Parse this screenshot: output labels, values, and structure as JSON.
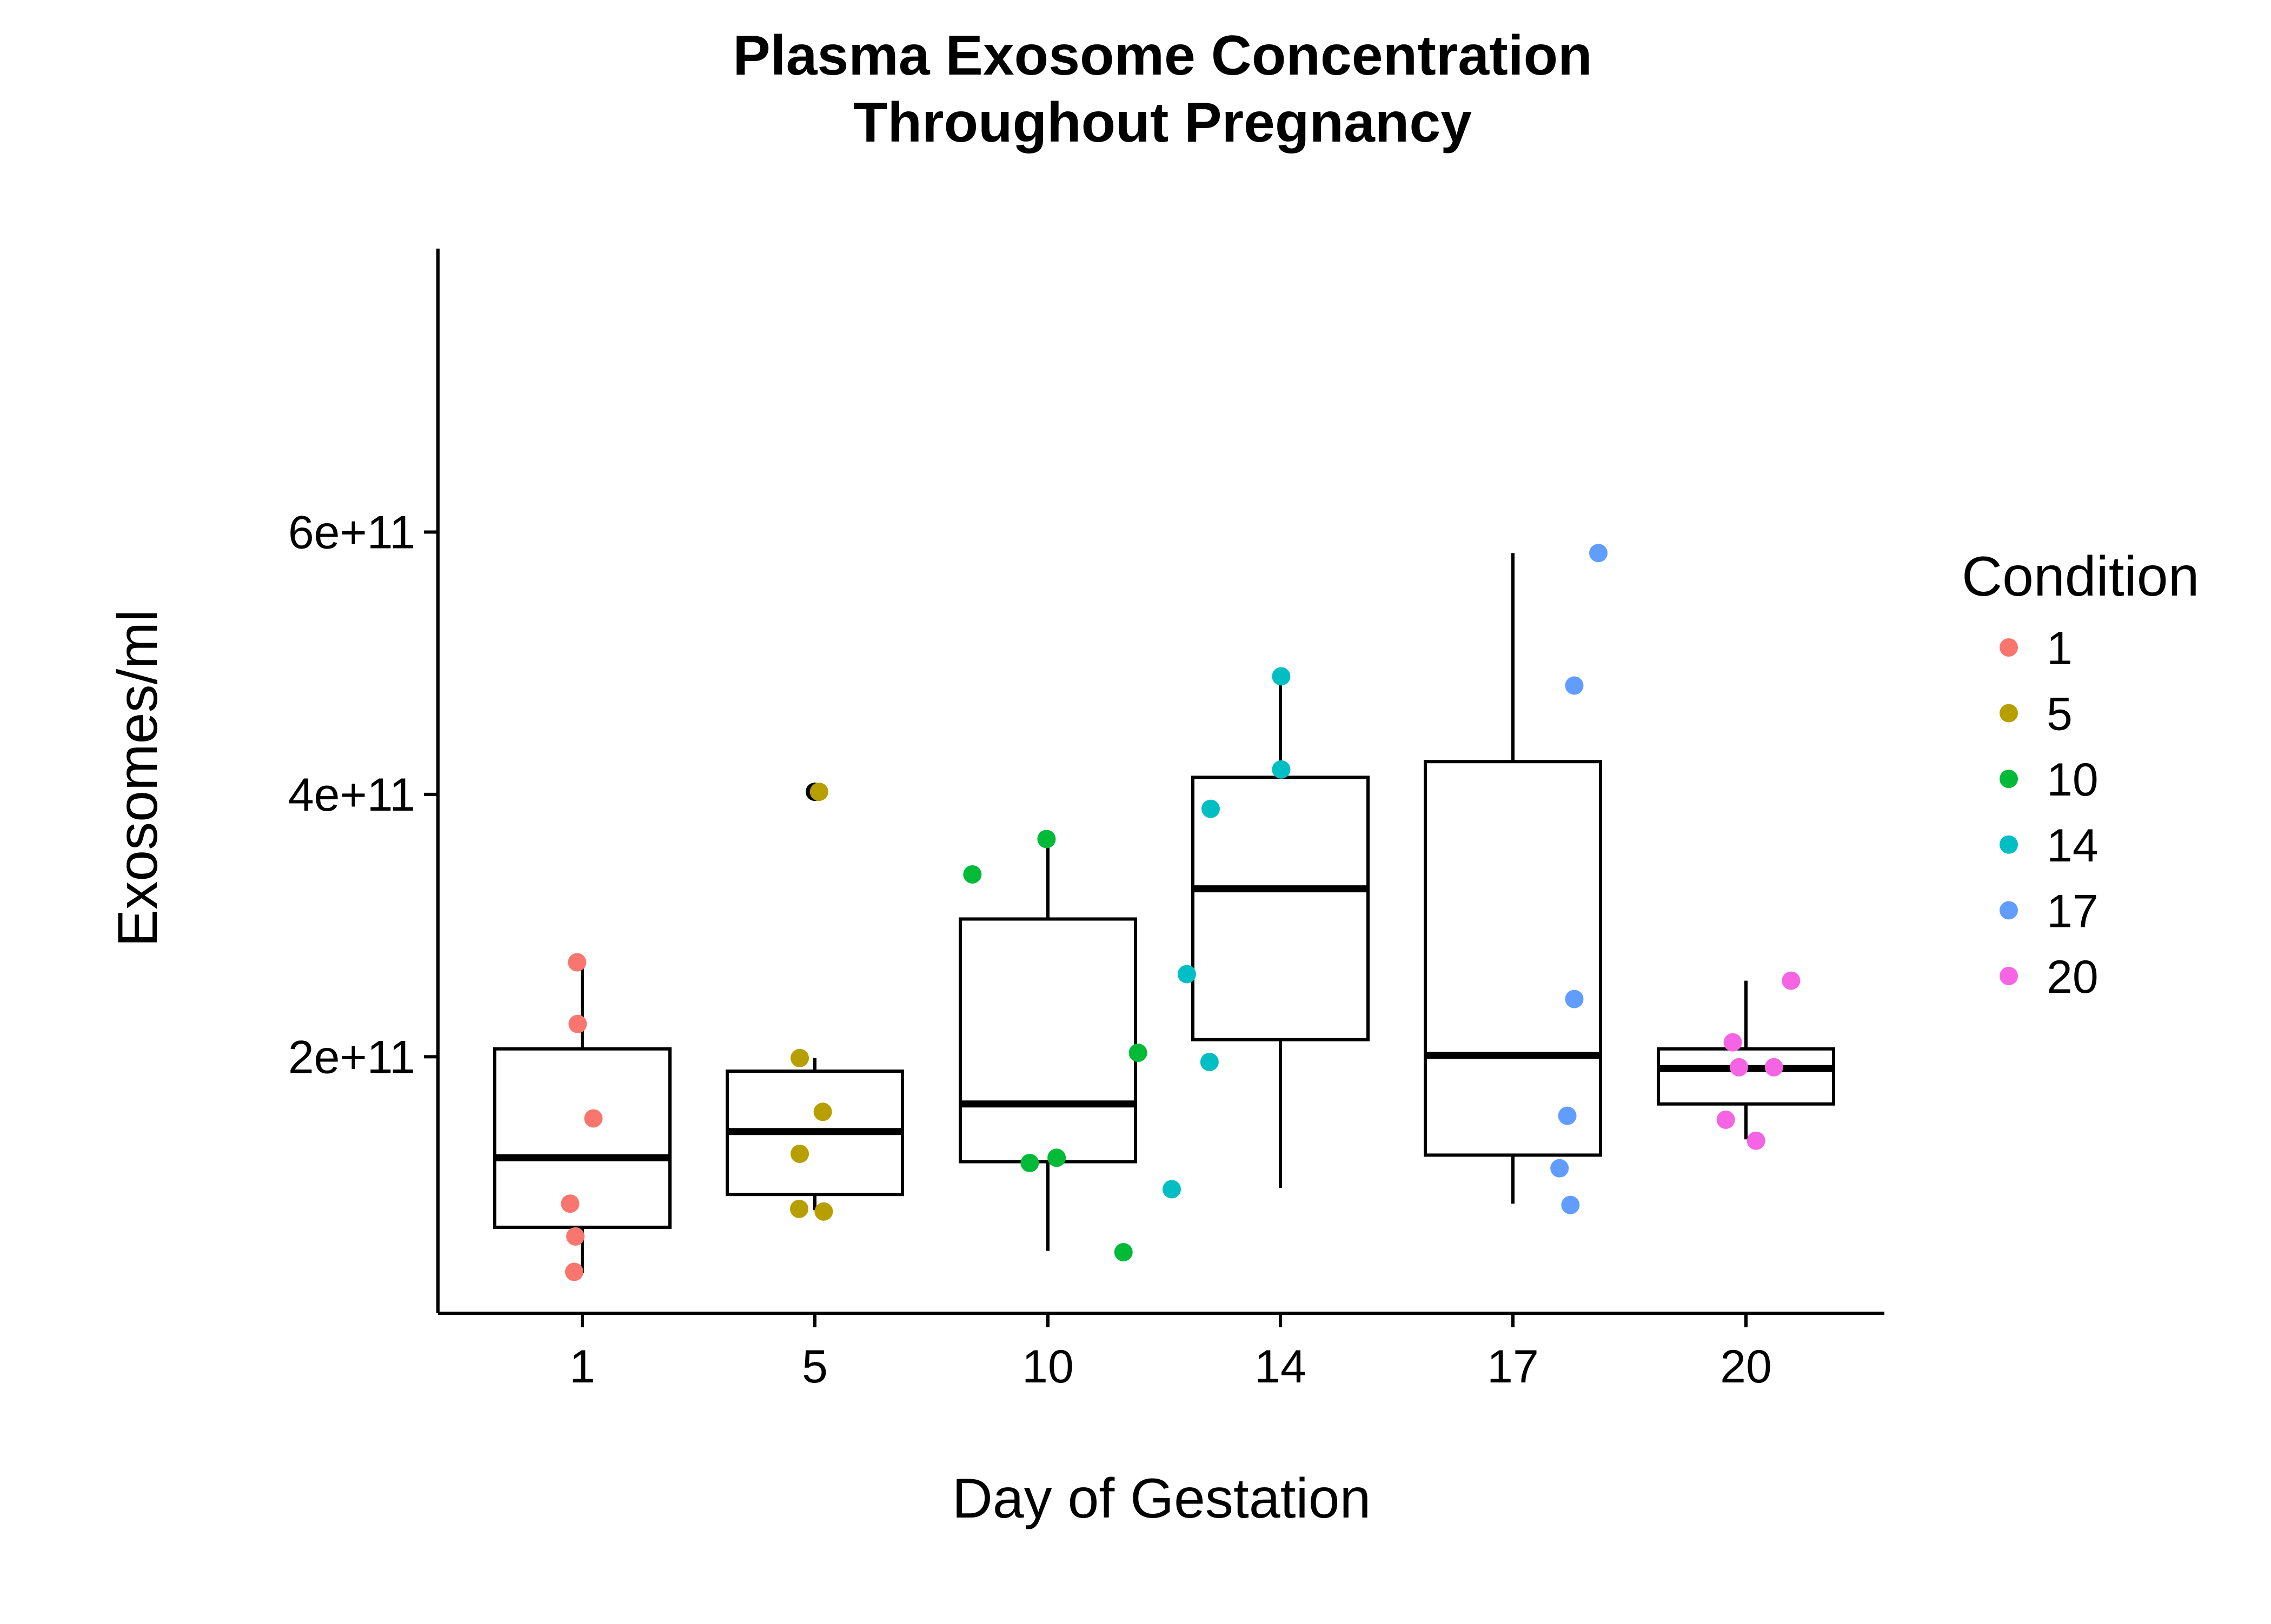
{
  "chart_data": {
    "type": "box",
    "title_lines": [
      "Plasma Exosome Concentration",
      "Throughout Pregnancy"
    ],
    "xlabel": "Day of Gestation",
    "ylabel": "Exosomes/ml",
    "categories": [
      "1",
      "5",
      "10",
      "14",
      "17",
      "20"
    ],
    "y_ticks": [
      200000000000,
      400000000000,
      600000000000
    ],
    "y_tick_labels": [
      "2e+11",
      "4e+11",
      "6e+11"
    ],
    "ylim": [
      15000000000,
      610000000000
    ],
    "grid": false,
    "legend": {
      "title": "Condition",
      "position": "right",
      "entries": [
        "1",
        "5",
        "10",
        "14",
        "17",
        "20"
      ]
    },
    "colors": [
      "#F8766D",
      "#B79F00",
      "#00BA38",
      "#00BFC4",
      "#619CFF",
      "#F564E3"
    ],
    "boxes": [
      {
        "category": "1",
        "whisker_low": 35000000000,
        "q1": 70000000000,
        "median": 123000000000,
        "q3": 206000000000,
        "whisker_high": 271000000000
      },
      {
        "category": "5",
        "whisker_low": 83000000000,
        "q1": 95000000000,
        "median": 143000000000,
        "q3": 189000000000,
        "whisker_high": 199000000000
      },
      {
        "category": "10",
        "whisker_low": 52000000000,
        "q1": 120000000000,
        "median": 164000000000,
        "q3": 305000000000,
        "whisker_high": 366000000000
      },
      {
        "category": "14",
        "whisker_low": 100000000000,
        "q1": 213000000000,
        "median": 328000000000,
        "q3": 413000000000,
        "whisker_high": 490000000000
      },
      {
        "category": "17",
        "whisker_low": 88000000000,
        "q1": 125000000000,
        "median": 201000000000,
        "q3": 425000000000,
        "whisker_high": 584000000000
      },
      {
        "category": "20",
        "whisker_low": 137000000000,
        "q1": 164000000000,
        "median": 191000000000,
        "q3": 206000000000,
        "whisker_high": 258000000000
      }
    ],
    "outliers": [
      {
        "category": "5",
        "y": 402000000000
      }
    ],
    "points": [
      {
        "category": "1",
        "x": 0.79,
        "y": 88000000000
      },
      {
        "category": "1",
        "x": 0.86,
        "y": 36000000000
      },
      {
        "category": "1",
        "x": 0.88,
        "y": 63000000000
      },
      {
        "category": "1",
        "x": 0.91,
        "y": 272000000000
      },
      {
        "category": "1",
        "x": 0.92,
        "y": 225000000000
      },
      {
        "category": "1",
        "x": 1.19,
        "y": 153000000000
      },
      {
        "category": "5",
        "x": 4.73,
        "y": 84000000000
      },
      {
        "category": "5",
        "x": 4.74,
        "y": 126000000000
      },
      {
        "category": "5",
        "x": 4.74,
        "y": 199000000000
      },
      {
        "category": "5",
        "x": 5.09,
        "y": 402000000000
      },
      {
        "category": "5",
        "x": 5.17,
        "y": 158000000000
      },
      {
        "category": "5",
        "x": 5.19,
        "y": 82000000000
      },
      {
        "category": "10",
        "x": 8.38,
        "y": 339000000000
      },
      {
        "category": "10",
        "x": 9.61,
        "y": 119000000000
      },
      {
        "category": "10",
        "x": 9.97,
        "y": 366000000000
      },
      {
        "category": "10",
        "x": 10.15,
        "y": 123000000000
      },
      {
        "category": "10",
        "x": 11.3,
        "y": 51000000000
      },
      {
        "category": "10",
        "x": 11.55,
        "y": 203000000000
      },
      {
        "category": "14",
        "x": 12.13,
        "y": 99000000000
      },
      {
        "category": "14",
        "x": 12.39,
        "y": 263000000000
      },
      {
        "category": "14",
        "x": 12.78,
        "y": 196000000000
      },
      {
        "category": "14",
        "x": 12.8,
        "y": 389000000000
      },
      {
        "category": "14",
        "x": 14.01,
        "y": 490000000000
      },
      {
        "category": "14",
        "x": 14.01,
        "y": 419000000000
      },
      {
        "category": "17",
        "x": 17.6,
        "y": 115000000000
      },
      {
        "category": "17",
        "x": 17.7,
        "y": 155000000000
      },
      {
        "category": "17",
        "x": 17.74,
        "y": 87000000000
      },
      {
        "category": "17",
        "x": 17.79,
        "y": 244000000000
      },
      {
        "category": "17",
        "x": 17.79,
        "y": 483000000000
      },
      {
        "category": "17",
        "x": 18.1,
        "y": 584000000000
      },
      {
        "category": "20",
        "x": 19.74,
        "y": 152000000000
      },
      {
        "category": "20",
        "x": 19.83,
        "y": 211000000000
      },
      {
        "category": "20",
        "x": 19.91,
        "y": 192000000000
      },
      {
        "category": "20",
        "x": 20.13,
        "y": 136000000000
      },
      {
        "category": "20",
        "x": 20.36,
        "y": 192000000000
      },
      {
        "category": "20",
        "x": 20.58,
        "y": 258000000000
      }
    ]
  }
}
